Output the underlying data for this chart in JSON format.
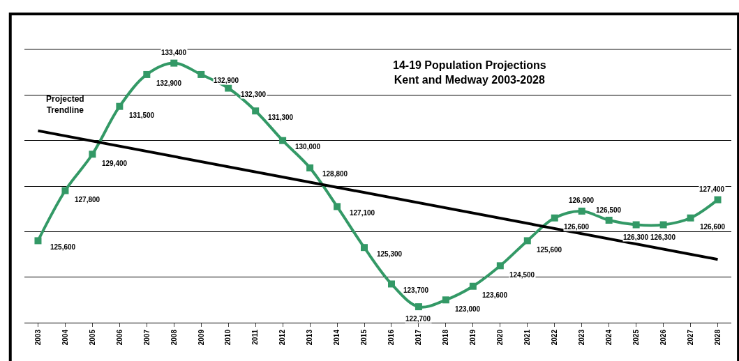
{
  "chart_data": {
    "type": "line",
    "title": "14-19 Population Projections\nKent and Medway 2003-2028",
    "categories": [
      "2003",
      "2004",
      "2005",
      "2006",
      "2007",
      "2008",
      "2009",
      "2010",
      "2011",
      "2012",
      "2013",
      "2014",
      "2015",
      "2016",
      "2017",
      "2018",
      "2019",
      "2020",
      "2021",
      "2022",
      "2023",
      "2024",
      "2025",
      "2026",
      "2027",
      "2028"
    ],
    "series": [
      {
        "color": "#339966",
        "marker": "square",
        "values": [
          125600,
          127800,
          129400,
          131500,
          132900,
          133400,
          132900,
          132300,
          131300,
          130000,
          128800,
          127100,
          125300,
          123700,
          122700,
          123000,
          123600,
          124500,
          125600,
          126600,
          126900,
          126500,
          126300,
          126300,
          126600,
          127400
        ],
        "value_labels": [
          "125,600",
          "127,800",
          "129,400",
          "131,500",
          "132,900",
          "133,400",
          "132,900",
          "132,300",
          "131,300",
          "130,000",
          "128,800",
          "127,100",
          "125,300",
          "123,700",
          "122,700",
          "123,000",
          "123,600",
          "124,500",
          "125,600",
          "126,600",
          "126,900",
          "126,500",
          "126,300",
          "126,300",
          "126,600",
          "127,400"
        ]
      },
      {
        "name": "Projected\nTrendline",
        "color": "#000000",
        "marker": "none",
        "values": [
          130430,
          null,
          null,
          null,
          null,
          null,
          null,
          null,
          null,
          null,
          null,
          null,
          null,
          null,
          null,
          null,
          null,
          null,
          null,
          null,
          null,
          null,
          null,
          null,
          null,
          124780
        ]
      }
    ],
    "ylim": [
      122000,
      134000
    ],
    "yticks": [
      {
        "value": 122000,
        "label": null
      },
      {
        "value": 124000,
        "label": null
      },
      {
        "value": 126000,
        "label": null
      },
      {
        "value": 128000,
        "label": null
      },
      {
        "value": 130000,
        "label": null
      },
      {
        "value": 132000,
        "label": null
      },
      {
        "value": 134000,
        "label": null
      }
    ],
    "tick_labels": "x",
    "grid": "y",
    "legend": false
  }
}
